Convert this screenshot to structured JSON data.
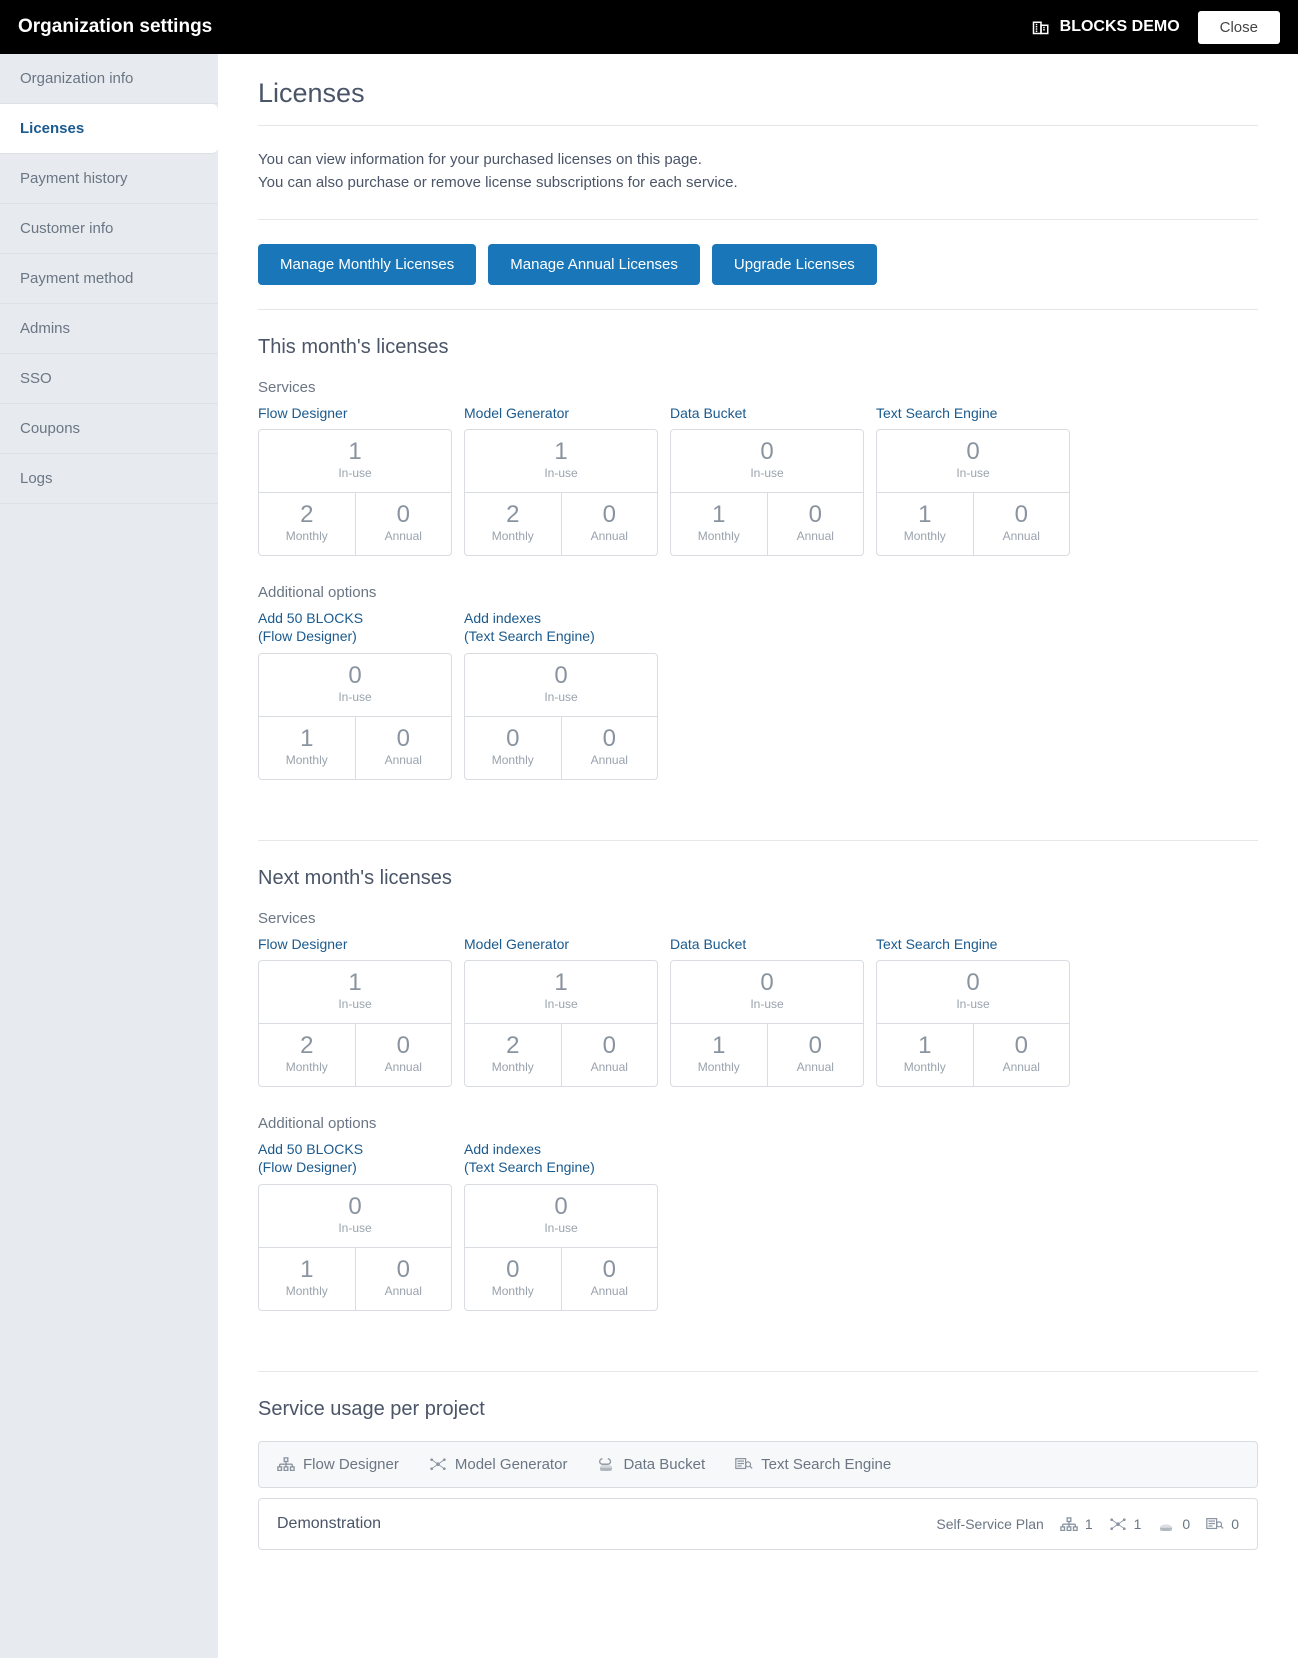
{
  "header": {
    "title": "Organization settings",
    "org_name": "BLOCKS DEMO",
    "close_label": "Close"
  },
  "sidebar": {
    "items": [
      {
        "label": "Organization info"
      },
      {
        "label": "Licenses"
      },
      {
        "label": "Payment history"
      },
      {
        "label": "Customer info"
      },
      {
        "label": "Payment method"
      },
      {
        "label": "Admins"
      },
      {
        "label": "SSO"
      },
      {
        "label": "Coupons"
      },
      {
        "label": "Logs"
      }
    ]
  },
  "page": {
    "title": "Licenses",
    "desc1": "You can view information for your purchased licenses on this page.",
    "desc2": "You can also purchase or remove license subscriptions for each service."
  },
  "buttons": {
    "manage_monthly": "Manage Monthly Licenses",
    "manage_annual": "Manage Annual Licenses",
    "upgrade": "Upgrade Licenses"
  },
  "labels": {
    "in_use": "In-use",
    "monthly": "Monthly",
    "annual": "Annual",
    "services": "Services",
    "additional_options": "Additional options"
  },
  "this_month": {
    "title": "This month's licenses",
    "services": [
      {
        "name": "Flow Designer",
        "in_use": "1",
        "monthly": "2",
        "annual": "0"
      },
      {
        "name": "Model Generator",
        "in_use": "1",
        "monthly": "2",
        "annual": "0"
      },
      {
        "name": "Data Bucket",
        "in_use": "0",
        "monthly": "1",
        "annual": "0"
      },
      {
        "name": "Text Search Engine",
        "in_use": "0",
        "monthly": "1",
        "annual": "0"
      }
    ],
    "options": [
      {
        "name1": "Add 50 BLOCKS",
        "name2": "(Flow Designer)",
        "in_use": "0",
        "monthly": "1",
        "annual": "0"
      },
      {
        "name1": "Add indexes",
        "name2": "(Text Search Engine)",
        "in_use": "0",
        "monthly": "0",
        "annual": "0"
      }
    ]
  },
  "next_month": {
    "title": "Next month's licenses",
    "services": [
      {
        "name": "Flow Designer",
        "in_use": "1",
        "monthly": "2",
        "annual": "0"
      },
      {
        "name": "Model Generator",
        "in_use": "1",
        "monthly": "2",
        "annual": "0"
      },
      {
        "name": "Data Bucket",
        "in_use": "0",
        "monthly": "1",
        "annual": "0"
      },
      {
        "name": "Text Search Engine",
        "in_use": "0",
        "monthly": "1",
        "annual": "0"
      }
    ],
    "options": [
      {
        "name1": "Add 50 BLOCKS",
        "name2": "(Flow Designer)",
        "in_use": "0",
        "monthly": "1",
        "annual": "0"
      },
      {
        "name1": "Add indexes",
        "name2": "(Text Search Engine)",
        "in_use": "0",
        "monthly": "0",
        "annual": "0"
      }
    ]
  },
  "usage": {
    "title": "Service usage per project",
    "legend": {
      "flow": "Flow Designer",
      "model": "Model Generator",
      "data": "Data Bucket",
      "text": "Text Search Engine"
    },
    "project": {
      "name": "Demonstration",
      "plan": "Self-Service Plan",
      "flow": "1",
      "model": "1",
      "data": "0",
      "text": "0"
    }
  },
  "colors": {
    "header_bg": "#000000",
    "primary_btn": "#1976b8",
    "sidebar_bg": "#e7eaee",
    "link": "#1a5a8e",
    "text_muted": "#6b7684",
    "border": "#d9dde2"
  }
}
